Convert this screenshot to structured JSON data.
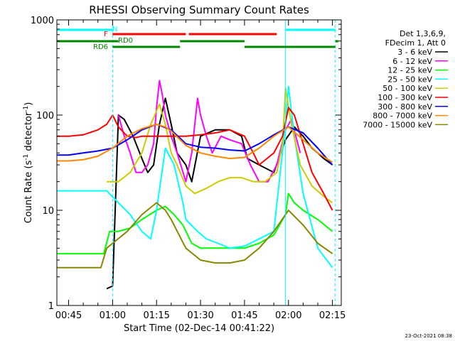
{
  "chart_data": {
    "type": "line",
    "title": "RHESSI Observing Summary Count Rates",
    "xlabel": "Start Time (02-Dec-14 00:41:22)",
    "ylabel": "Count Rate (s",
    "ylabel_sup": "-1",
    "ylabel_tail": " detector",
    "ylabel_close": ")",
    "y_scale": "log",
    "ylim": [
      1,
      1000
    ],
    "xlim": [
      "00:41",
      "02:18"
    ],
    "x_ticks": [
      "00:45",
      "01:00",
      "01:15",
      "01:30",
      "01:45",
      "02:00",
      "02:15"
    ],
    "y_ticks": [
      "1",
      "10",
      "100",
      "1000"
    ],
    "timestamp": "23-Oct-2021 08:38",
    "legend": {
      "header_lines": [
        "Det 1,3,6,9,",
        "FDecim 1, Att 0"
      ],
      "entries": [
        {
          "label": "3 - 6 keV",
          "color": "#000000"
        },
        {
          "label": "6 - 12 keV",
          "color": "#ff00ff"
        },
        {
          "label": "12 - 25 keV",
          "color": "#00ff00"
        },
        {
          "label": "25 - 50 keV",
          "color": "#00ffff"
        },
        {
          "label": "50 - 100 keV",
          "color": "#cccc00"
        },
        {
          "label": "100 - 300 keV",
          "color": "#ff0000"
        },
        {
          "label": "300 - 800 keV",
          "color": "#0000ff"
        },
        {
          "label": "800 - 7000 keV",
          "color": "#ff8800"
        },
        {
          "label": "7000 - 15000 keV",
          "color": "#888800"
        }
      ]
    },
    "flags": [
      {
        "label": "N",
        "color": "#00ffff",
        "segments": [
          [
            "00:41",
            "01:00"
          ],
          [
            "01:59",
            "02:16"
          ]
        ]
      },
      {
        "label": "F",
        "color": "#ff0000",
        "segments": [
          [
            "01:00",
            "01:25"
          ],
          [
            "01:26",
            "01:56"
          ]
        ]
      },
      {
        "label": "RD0",
        "color": "#008800",
        "segments": [
          [
            "00:41",
            "01:02"
          ],
          [
            "01:23",
            "01:45"
          ],
          [
            "02:16",
            "02:17"
          ]
        ]
      },
      {
        "label": "RD6",
        "color": "#008800",
        "segments": [
          [
            "01:00",
            "01:23"
          ],
          [
            "01:45",
            "02:16"
          ]
        ]
      }
    ],
    "vlines": [
      {
        "time": "01:00",
        "color": "#00ffff",
        "style": "dashed"
      },
      {
        "time": "01:59",
        "color": "#00ffff",
        "style": "solid"
      },
      {
        "time": "02:16",
        "color": "#00ffff",
        "style": "dashed"
      }
    ],
    "series": [
      {
        "name": "3 - 6 keV",
        "color": "#000000",
        "x": [
          "00:58",
          "01:00",
          "01:02",
          "01:04",
          "01:07",
          "01:10",
          "01:12",
          "01:14",
          "01:16",
          "01:18",
          "01:20",
          "01:22",
          "01:25",
          "01:27",
          "01:30",
          "01:35",
          "01:40",
          "01:44",
          "01:46",
          "01:50",
          "01:55",
          "01:59",
          "02:02",
          "02:05",
          "02:08",
          "02:10",
          "02:12",
          "02:15"
        ],
        "y": [
          1.5,
          1.6,
          100,
          90,
          60,
          35,
          25,
          30,
          80,
          150,
          80,
          40,
          30,
          20,
          60,
          70,
          70,
          60,
          35,
          30,
          25,
          55,
          75,
          60,
          45,
          40,
          35,
          30
        ]
      },
      {
        "name": "6 - 12 keV",
        "color": "#ff00ff",
        "x": [
          "01:02",
          "01:04",
          "01:06",
          "01:08",
          "01:10",
          "01:12",
          "01:14",
          "01:15",
          "01:16",
          "01:17",
          "01:18",
          "01:20",
          "01:22",
          "01:25",
          "01:27",
          "01:29",
          "01:30",
          "01:32",
          "01:34",
          "01:37",
          "01:40",
          "01:44",
          "01:47",
          "01:50",
          "01:53",
          "01:56",
          "01:59",
          "02:01",
          "02:04"
        ],
        "y": [
          100,
          60,
          40,
          25,
          25,
          30,
          50,
          120,
          230,
          160,
          100,
          60,
          40,
          20,
          40,
          150,
          100,
          60,
          40,
          60,
          55,
          50,
          30,
          20,
          20,
          30,
          70,
          90,
          40
        ]
      },
      {
        "name": "12 - 25 keV",
        "color": "#00ff00",
        "x": [
          "00:41",
          "00:50",
          "00:57",
          "00:59",
          "01:02",
          "01:06",
          "01:10",
          "01:15",
          "01:18",
          "01:21",
          "01:24",
          "01:27",
          "01:30",
          "01:35",
          "01:40",
          "01:45",
          "01:50",
          "01:55",
          "01:59",
          "02:00",
          "02:02",
          "02:05",
          "02:10",
          "02:15"
        ],
        "y": [
          3.5,
          3.5,
          3.5,
          6,
          6,
          6.5,
          8,
          10,
          11,
          9,
          7,
          4.5,
          4,
          4,
          4,
          4,
          4.5,
          5.5,
          9,
          15,
          12,
          10,
          8,
          6
        ]
      },
      {
        "name": "25 - 50 keV",
        "color": "#00ffff",
        "x": [
          "00:41",
          "00:50",
          "00:56",
          "00:58",
          "01:02",
          "01:06",
          "01:10",
          "01:13",
          "01:15",
          "01:18",
          "01:21",
          "01:24",
          "01:25",
          "01:29",
          "01:32",
          "01:36",
          "01:40",
          "01:45",
          "01:50",
          "01:55",
          "01:59",
          "02:00",
          "02:02",
          "02:05",
          "02:10",
          "02:15"
        ],
        "y": [
          16,
          16,
          16,
          16,
          12,
          9,
          6,
          5,
          10,
          45,
          30,
          12,
          8,
          6,
          5,
          4.5,
          4,
          4.2,
          5,
          6,
          80,
          200,
          60,
          15,
          4,
          2.5
        ]
      },
      {
        "name": "50 - 100 keV",
        "color": "#cccc00",
        "x": [
          "00:58",
          "01:02",
          "01:06",
          "01:10",
          "01:13",
          "01:16",
          "01:18",
          "01:20",
          "01:22",
          "01:25",
          "01:28",
          "01:32",
          "01:36",
          "01:40",
          "01:44",
          "01:48",
          "01:52",
          "01:56",
          "01:58",
          "01:59",
          "02:01",
          "02:04",
          "02:08",
          "02:12",
          "02:15"
        ],
        "y": [
          20,
          20,
          25,
          40,
          80,
          130,
          80,
          40,
          30,
          18,
          15,
          17,
          20,
          22,
          22,
          20,
          20,
          25,
          50,
          190,
          80,
          30,
          18,
          14,
          12
        ]
      },
      {
        "name": "100 - 300 keV",
        "color": "#ff0000",
        "x": [
          "00:41",
          "00:45",
          "00:50",
          "00:55",
          "00:58",
          "01:00",
          "01:02",
          "01:05",
          "01:08",
          "01:10",
          "01:15",
          "01:20",
          "01:24",
          "01:25",
          "01:30",
          "01:35",
          "01:40",
          "01:45",
          "01:48",
          "01:50",
          "01:55",
          "01:58",
          "02:00",
          "02:02",
          "02:05",
          "02:08",
          "02:12",
          "02:15"
        ],
        "y": [
          60,
          60,
          62,
          70,
          80,
          100,
          75,
          60,
          58,
          60,
          60,
          60,
          60,
          60,
          62,
          65,
          70,
          60,
          40,
          30,
          40,
          60,
          120,
          100,
          50,
          25,
          15,
          10
        ]
      },
      {
        "name": "300 - 800 keV",
        "color": "#0000ff",
        "x": [
          "00:41",
          "00:45",
          "00:50",
          "00:55",
          "01:00",
          "01:05",
          "01:10",
          "01:15",
          "01:20",
          "01:25",
          "01:30",
          "01:35",
          "01:40",
          "01:45",
          "01:50",
          "01:55",
          "02:00",
          "02:05",
          "02:10",
          "02:15"
        ],
        "y": [
          38,
          38,
          40,
          42,
          45,
          55,
          70,
          80,
          70,
          50,
          46,
          45,
          43,
          42,
          50,
          62,
          75,
          65,
          45,
          30
        ]
      },
      {
        "name": "800 - 7000 keV",
        "color": "#ff8800",
        "x": [
          "00:41",
          "00:45",
          "00:50",
          "00:55",
          "01:00",
          "01:05",
          "01:10",
          "01:15",
          "01:18",
          "01:20",
          "01:25",
          "01:30",
          "01:35",
          "01:40",
          "01:45",
          "01:50",
          "01:55",
          "02:00",
          "02:05",
          "02:10",
          "02:15"
        ],
        "y": [
          33,
          33,
          34,
          37,
          45,
          60,
          72,
          80,
          75,
          68,
          48,
          40,
          37,
          35,
          36,
          45,
          60,
          75,
          55,
          40,
          32
        ]
      },
      {
        "name": "7000 - 15000 keV",
        "color": "#888800",
        "x": [
          "00:41",
          "00:50",
          "00:56",
          "00:58",
          "01:00",
          "01:05",
          "01:10",
          "01:15",
          "01:18",
          "01:20",
          "01:25",
          "01:30",
          "01:35",
          "01:40",
          "01:45",
          "01:50",
          "01:55",
          "02:00",
          "02:05",
          "02:10",
          "02:15"
        ],
        "y": [
          2.5,
          2.5,
          2.5,
          4,
          4.5,
          6,
          9,
          12,
          10,
          8,
          4,
          3,
          2.8,
          2.8,
          3,
          4,
          6,
          10,
          7,
          4.5,
          3.5
        ]
      }
    ]
  }
}
